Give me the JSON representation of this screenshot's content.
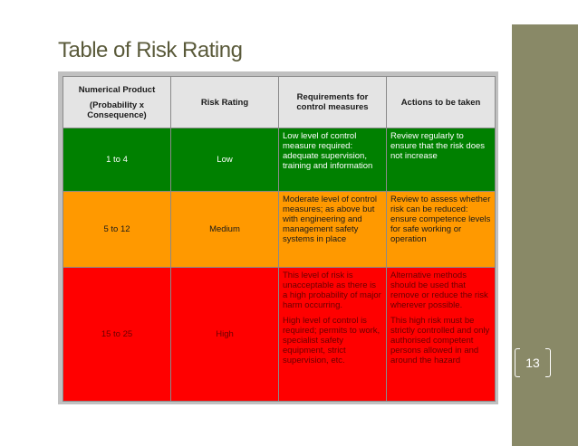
{
  "slide": {
    "title": "Table of Risk Rating",
    "page_number": "13"
  },
  "table": {
    "headers": {
      "numerical_line1": "Numerical Product",
      "numerical_line2": "(Probability x Consequence)",
      "risk_rating": "Risk Rating",
      "requirements": "Requirements for control measures",
      "actions": "Actions to be taken"
    },
    "rows": [
      {
        "range": "1 to 4",
        "rating": "Low",
        "requirements": [
          "Low level of control measure required: adequate supervision, training and information"
        ],
        "actions": [
          "Review regularly to ensure that the risk does not increase"
        ]
      },
      {
        "range": "5 to 12",
        "rating": "Medium",
        "requirements": [
          "Moderate level of control measures; as above but with engineering and management safety systems in place"
        ],
        "actions": [
          "Review to assess whether risk can be reduced: ensure competence levels for safe working or operation"
        ]
      },
      {
        "range": "15 to 25",
        "rating": "High",
        "requirements": [
          "This level of risk is unacceptable as there is a high probability of major harm occurring.",
          "High level of control is required; permits to work, specialist safety equipment, strict supervision, etc."
        ],
        "actions": [
          "Alternative methods should be used that remove or reduce the risk wherever possible.",
          "This high risk must be strictly controlled and only authorised competent persons allowed in and around the hazard"
        ]
      }
    ]
  },
  "colors": {
    "low": "#008000",
    "medium": "#ff9900",
    "high": "#ff0000",
    "sidebar": "#898967"
  }
}
